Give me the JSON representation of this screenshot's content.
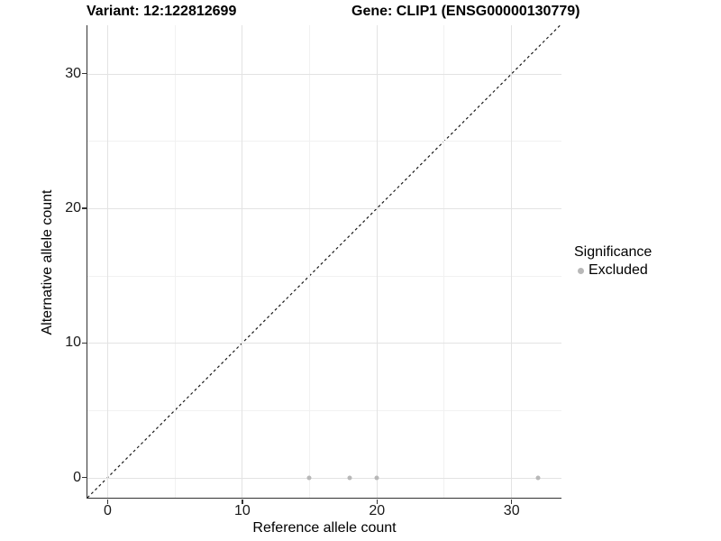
{
  "chart_data": {
    "type": "scatter",
    "title_left": "Variant: 12:122812699",
    "title_right": "Gene: CLIP1 (ENSG00000130779)",
    "xlabel": "Reference allele count",
    "ylabel": "Alternative allele count",
    "xlim": [
      -1.5,
      33.7
    ],
    "ylim": [
      -1.5,
      33.6
    ],
    "x_ticks": [
      0,
      10,
      20,
      30
    ],
    "y_ticks": [
      0,
      10,
      20,
      30
    ],
    "x_minor_ticks": [
      5,
      15,
      25
    ],
    "y_minor_ticks": [
      5,
      15,
      25
    ],
    "grid": true,
    "series": [
      {
        "name": "Excluded",
        "color": "#b8b8b8",
        "points": [
          [
            15,
            0
          ],
          [
            18,
            0
          ],
          [
            20,
            0
          ],
          [
            32,
            0
          ]
        ]
      }
    ],
    "reference_line": {
      "type": "identity",
      "slope": 1,
      "intercept": 0,
      "style": "dashed",
      "color": "#1a1a1a"
    },
    "legend": {
      "title": "Significance",
      "position": "right",
      "entries": [
        {
          "label": "Excluded",
          "color": "#b8b8b8"
        }
      ]
    }
  },
  "colors": {
    "major_grid": "#e3e3e3",
    "minor_grid": "#f1f1f1",
    "axis_line": "#333333",
    "tick_text": "#1a1a1a"
  }
}
